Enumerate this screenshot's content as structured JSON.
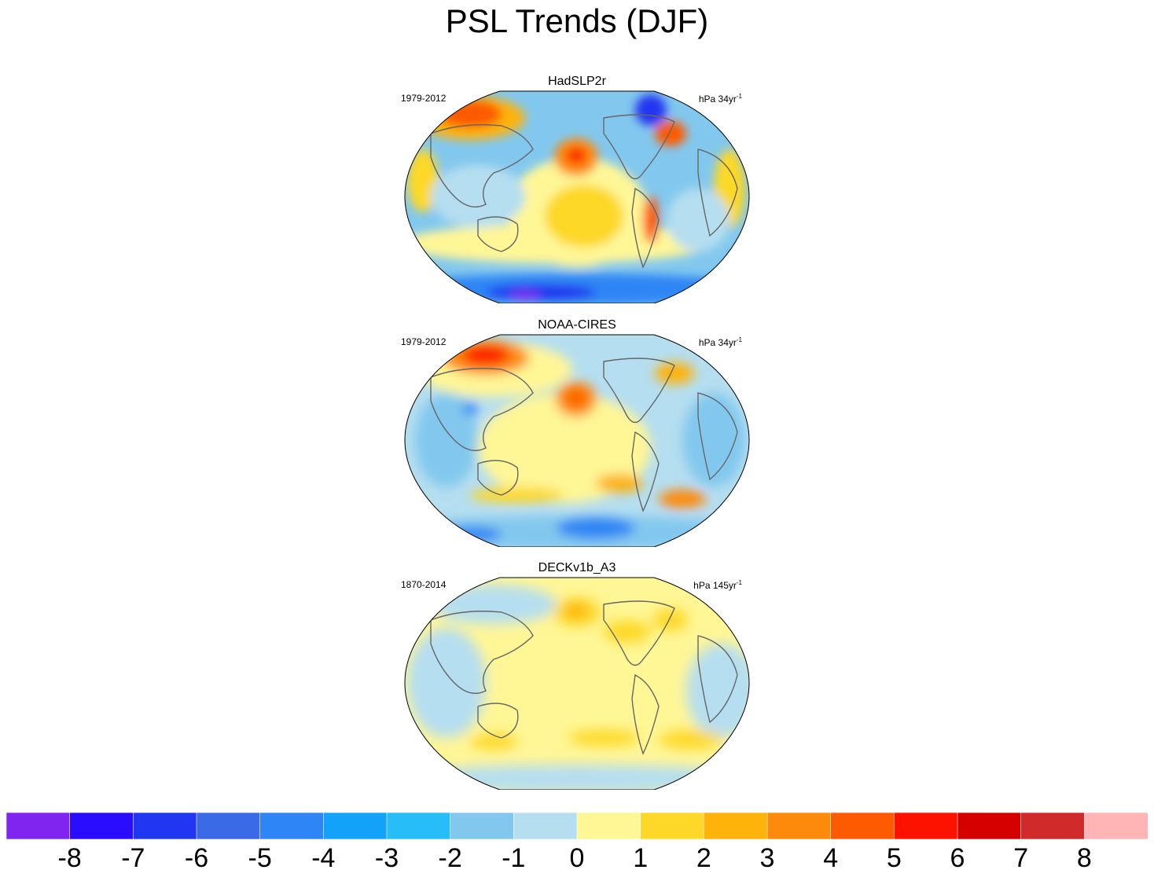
{
  "title": "PSL Trends (DJF)",
  "panels": [
    {
      "name": "HadSLP2r",
      "period": "1979-2012",
      "units_prefix": "hPa 34yr",
      "units_exp": "-1"
    },
    {
      "name": "NOAA-CIRES",
      "period": "1979-2012",
      "units_prefix": "hPa 34yr",
      "units_exp": "-1"
    },
    {
      "name": "DECKv1b_A3",
      "period": "1870-2014",
      "units_prefix": "hPa 145yr",
      "units_exp": "-1"
    }
  ],
  "colorbar": {
    "labels": [
      "-8",
      "-7",
      "-6",
      "-5",
      "-4",
      "-3",
      "-2",
      "-1",
      "0",
      "1",
      "2",
      "3",
      "4",
      "5",
      "6",
      "7",
      "8"
    ],
    "colors": [
      "#8024f0",
      "#2a0cff",
      "#2036f0",
      "#3a6ae6",
      "#2e85f5",
      "#13a2fa",
      "#26bdf8",
      "#82c8ee",
      "#b5def0",
      "#fff696",
      "#fdd828",
      "#fdb30a",
      "#fd8a0a",
      "#fd5a02",
      "#fd1200",
      "#d60000",
      "#d12a2a",
      "#ffb5b5"
    ]
  },
  "chart_data": {
    "type": "heatmap",
    "title": "PSL Trends (DJF)",
    "projection": "Robinson-like global map, Pacific-centered",
    "colorbar_levels": [
      -8,
      -7,
      -6,
      -5,
      -4,
      -3,
      -2,
      -1,
      0,
      1,
      2,
      3,
      4,
      5,
      6,
      7,
      8
    ],
    "units": "hPa per period",
    "series": [
      {
        "name": "HadSLP2r",
        "period": "1979-2012",
        "units": "hPa 34yr-1"
      },
      {
        "name": "NOAA-CIRES",
        "period": "1979-2012",
        "units": "hPa 34yr-1"
      },
      {
        "name": "DECKv1b_A3",
        "period": "1870-2014",
        "units": "hPa 145yr-1"
      }
    ]
  }
}
